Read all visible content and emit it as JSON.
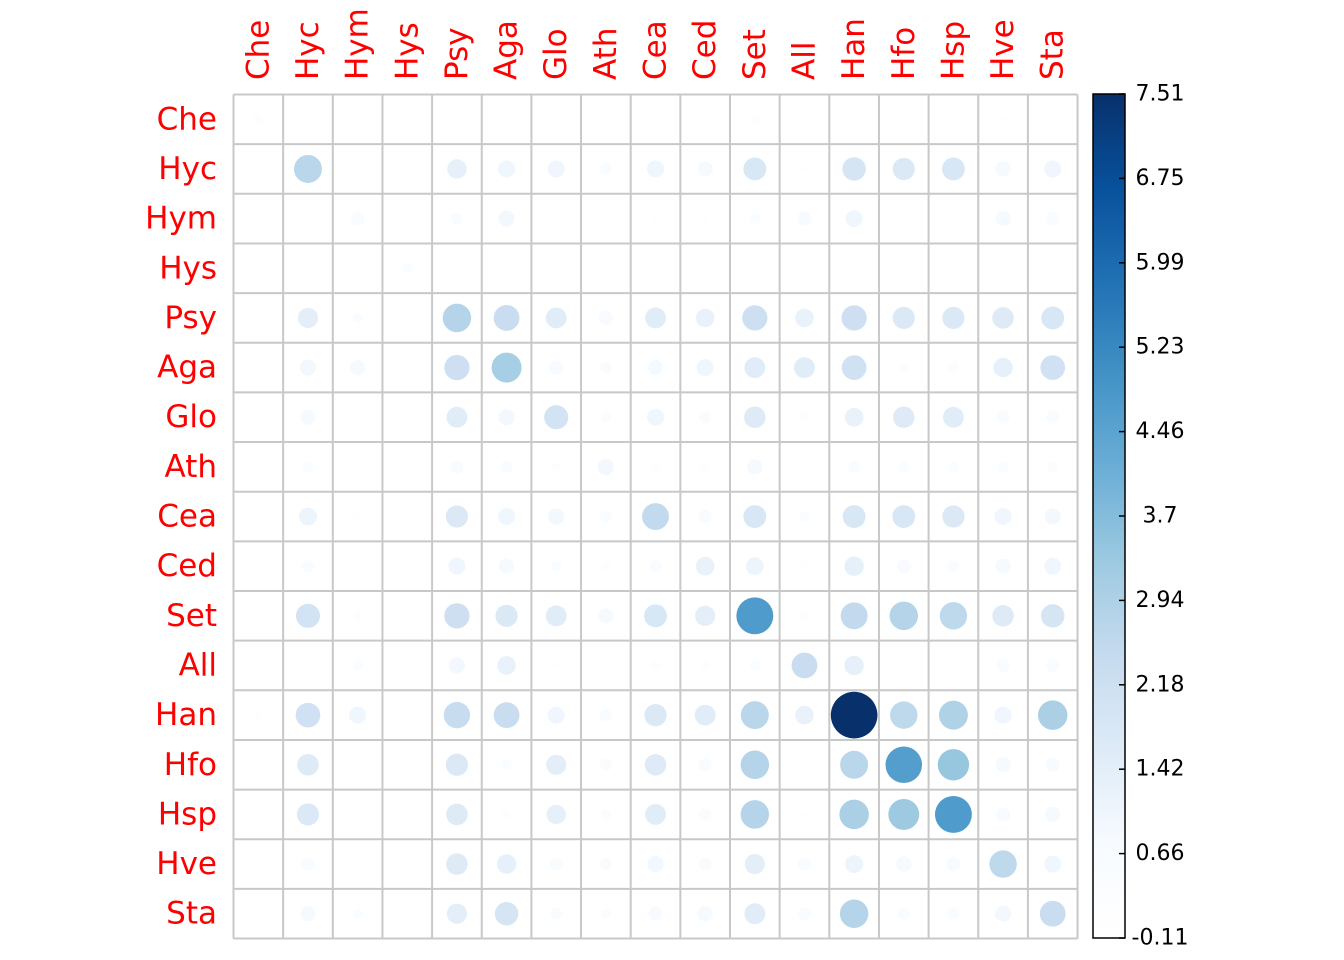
{
  "chart_data": {
    "type": "heatmap",
    "marker": "circle",
    "title": "",
    "xlabel": "",
    "ylabel": "",
    "categories": [
      "Che",
      "Hyc",
      "Hym",
      "Hys",
      "Psy",
      "Aga",
      "Glo",
      "Ath",
      "Cea",
      "Ced",
      "Set",
      "All",
      "Han",
      "Hfo",
      "Hsp",
      "Hve",
      "Sta"
    ],
    "rows": [
      "Che",
      "Hyc",
      "Hym",
      "Hys",
      "Psy",
      "Aga",
      "Glo",
      "Ath",
      "Cea",
      "Ced",
      "Set",
      "All",
      "Han",
      "Hfo",
      "Hsp",
      "Hve",
      "Sta"
    ],
    "values": [
      [
        0.3,
        0.1,
        null,
        null,
        0.2,
        0.2,
        0.1,
        0.05,
        0.1,
        0.05,
        0.3,
        0.05,
        0.2,
        0.1,
        0.1,
        0.2,
        0.05
      ],
      [
        0.05,
        2.7,
        0.15,
        null,
        1.3,
        1.0,
        1.0,
        0.5,
        1.0,
        0.8,
        1.8,
        0.15,
        1.9,
        1.7,
        1.8,
        0.8,
        1.0
      ],
      [
        null,
        0.1,
        0.6,
        null,
        0.5,
        0.9,
        0.15,
        0.05,
        0.15,
        0.2,
        0.4,
        0.7,
        1.0,
        0.05,
        0.05,
        0.8,
        0.6
      ],
      [
        null,
        null,
        null,
        0.4,
        null,
        0.05,
        null,
        null,
        null,
        null,
        null,
        null,
        null,
        0.05,
        0.05,
        null,
        0.05
      ],
      [
        0.2,
        1.4,
        0.4,
        null,
        2.8,
        2.3,
        1.5,
        0.7,
        1.5,
        1.2,
        2.2,
        1.2,
        2.2,
        1.7,
        1.7,
        1.6,
        1.8
      ],
      [
        0.15,
        0.9,
        0.8,
        0.05,
        2.2,
        3.1,
        0.7,
        0.5,
        0.8,
        1.0,
        1.5,
        1.5,
        2.1,
        0.4,
        0.4,
        1.3,
        2.1
      ],
      [
        0.1,
        0.8,
        0.2,
        null,
        1.5,
        0.9,
        2.0,
        0.4,
        1.0,
        0.5,
        1.6,
        0.3,
        1.2,
        1.6,
        1.5,
        0.6,
        0.6
      ],
      [
        0.05,
        0.4,
        0.1,
        null,
        0.6,
        0.5,
        0.3,
        0.9,
        0.3,
        0.3,
        0.8,
        0.1,
        0.5,
        0.4,
        0.4,
        0.4,
        0.4
      ],
      [
        0.1,
        1.1,
        0.2,
        null,
        1.7,
        1.0,
        0.9,
        0.5,
        2.5,
        0.6,
        1.8,
        0.4,
        1.8,
        1.8,
        1.7,
        1.0,
        0.9
      ],
      [
        0.05,
        0.5,
        0.15,
        null,
        1.0,
        0.8,
        0.4,
        0.3,
        0.5,
        1.2,
        1.1,
        0.2,
        1.3,
        0.7,
        0.5,
        0.8,
        1.0
      ],
      [
        0.2,
        2.0,
        0.3,
        null,
        2.2,
        1.7,
        1.5,
        0.8,
        1.8,
        1.4,
        4.7,
        0.3,
        2.5,
        2.8,
        2.6,
        1.6,
        1.9
      ],
      [
        0.05,
        0.1,
        0.4,
        null,
        0.9,
        1.2,
        0.2,
        0.15,
        0.3,
        0.3,
        0.4,
        2.3,
        1.3,
        0.05,
        0.1,
        0.6,
        0.6
      ],
      [
        0.2,
        2.1,
        1.0,
        null,
        2.4,
        2.3,
        1.0,
        0.5,
        1.7,
        1.5,
        2.7,
        1.2,
        7.51,
        2.6,
        2.9,
        1.0,
        3.0
      ],
      [
        0.05,
        1.6,
        0.05,
        0.05,
        1.7,
        0.4,
        1.4,
        0.5,
        1.6,
        0.6,
        2.8,
        0.1,
        2.7,
        4.6,
        3.4,
        0.8,
        0.7
      ],
      [
        0.05,
        1.7,
        0.05,
        0.05,
        1.6,
        0.3,
        1.3,
        0.4,
        1.5,
        0.5,
        2.8,
        0.15,
        3.0,
        3.3,
        4.7,
        0.7,
        0.8
      ],
      [
        0.1,
        0.6,
        0.2,
        null,
        1.6,
        1.3,
        0.6,
        0.5,
        0.9,
        0.6,
        1.4,
        0.6,
        1.1,
        0.8,
        0.7,
        2.6,
        1.0
      ],
      [
        0.05,
        0.8,
        0.4,
        0.05,
        1.4,
        1.9,
        0.5,
        0.4,
        0.7,
        0.8,
        1.5,
        0.6,
        2.8,
        0.5,
        0.5,
        0.9,
        2.3
      ]
    ],
    "colorbar": {
      "min": -0.11,
      "max": 7.51,
      "ticks": [
        "7.51",
        "6.75",
        "5.99",
        "5.23",
        "4.46",
        "3.7",
        "2.94",
        "2.18",
        "1.42",
        "0.66",
        "-0.11"
      ],
      "colors": [
        "#ffffff",
        "#f7fbff",
        "#deebf7",
        "#c6dbef",
        "#9ecae1",
        "#6baed6",
        "#4292c6",
        "#2171b5",
        "#08519c",
        "#08306b"
      ]
    },
    "label_color": "#ff0000",
    "grid": true,
    "legend": "right"
  }
}
